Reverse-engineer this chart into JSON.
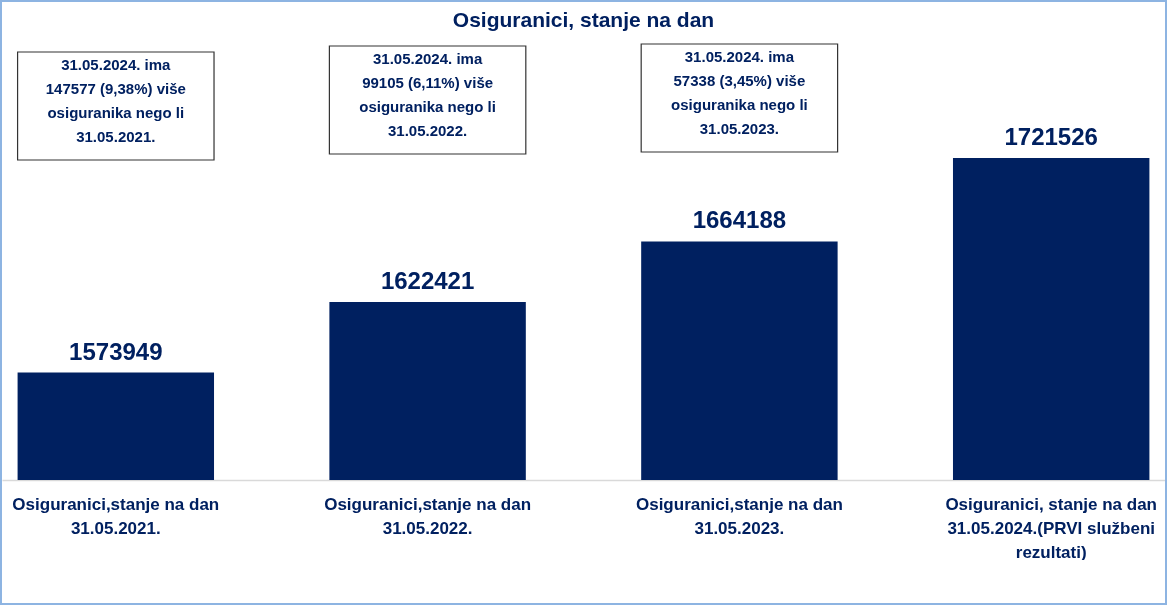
{
  "chart_data": {
    "type": "bar",
    "title": "Osiguranici, stanje na dan",
    "categories": [
      "Osiguranici,stanje na dan 31.05.2021.",
      "Osiguranici,stanje na dan 31.05.2022.",
      "Osiguranici,stanje na dan 31.05.2023.",
      "Osiguranici, stanje na dan 31.05.2024.(PRVI službeni rezultati)"
    ],
    "values": [
      1573949,
      1622421,
      1664188,
      1721526
    ],
    "color": "#002060",
    "ylim": [
      1500000,
      1800000
    ],
    "tick_labels": "x",
    "data_labels": true,
    "annotations": [
      "31.05.2024. ima 147577 (9,38%) više osiguranika nego li 31.05.2021.",
      "31.05.2024. ima 99105  (6,11%) više osiguranika nego li 31.05.2022.",
      "31.05.2024. ima 57338 (3,45%) više osiguranika nego li 31.05.2023."
    ]
  }
}
